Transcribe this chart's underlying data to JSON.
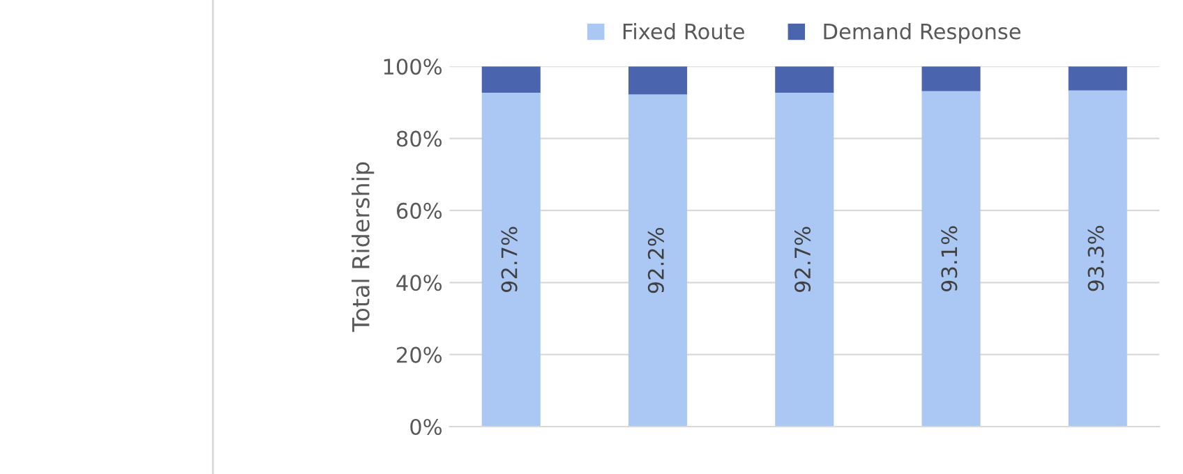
{
  "chart_data": {
    "type": "bar",
    "stacked": true,
    "ylabel": "Total Ridership",
    "categories": [
      null,
      null,
      null,
      null,
      null
    ],
    "series": [
      {
        "name": "Fixed Route",
        "color": "#abc8f4",
        "values": [
          92.7,
          92.2,
          92.7,
          93.1,
          93.3
        ],
        "value_labels": [
          "92.7%",
          "92.2%",
          "92.7%",
          "93.1%",
          "93.3%"
        ]
      },
      {
        "name": "Demand Response",
        "color": "#4a65ad",
        "values": [
          7.3,
          7.8,
          7.3,
          6.9,
          6.7
        ]
      }
    ],
    "ylim": [
      0,
      100
    ],
    "yticks": [
      {
        "value": 0,
        "label": "0%"
      },
      {
        "value": 20,
        "label": "20%"
      },
      {
        "value": 40,
        "label": "40%"
      },
      {
        "value": 60,
        "label": "60%"
      },
      {
        "value": 80,
        "label": "80%"
      },
      {
        "value": 100,
        "label": "100%"
      }
    ],
    "grid": "y",
    "legend": "top"
  }
}
